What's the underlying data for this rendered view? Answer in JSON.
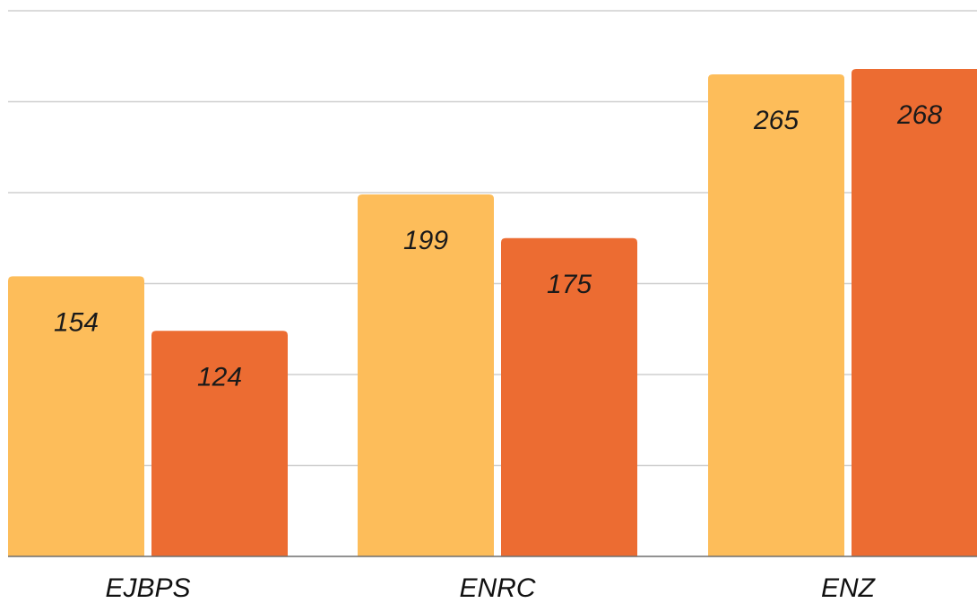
{
  "chart_data": {
    "type": "bar",
    "categories": [
      "EJBPS",
      "ENRC",
      "ENZ"
    ],
    "series": [
      {
        "values": [
          154,
          199,
          265
        ],
        "color": "#FDBD5A"
      },
      {
        "values": [
          124,
          175,
          268
        ],
        "color": "#EC6C32"
      }
    ],
    "ylim": [
      0,
      300
    ],
    "grid": true,
    "legend": "none"
  }
}
